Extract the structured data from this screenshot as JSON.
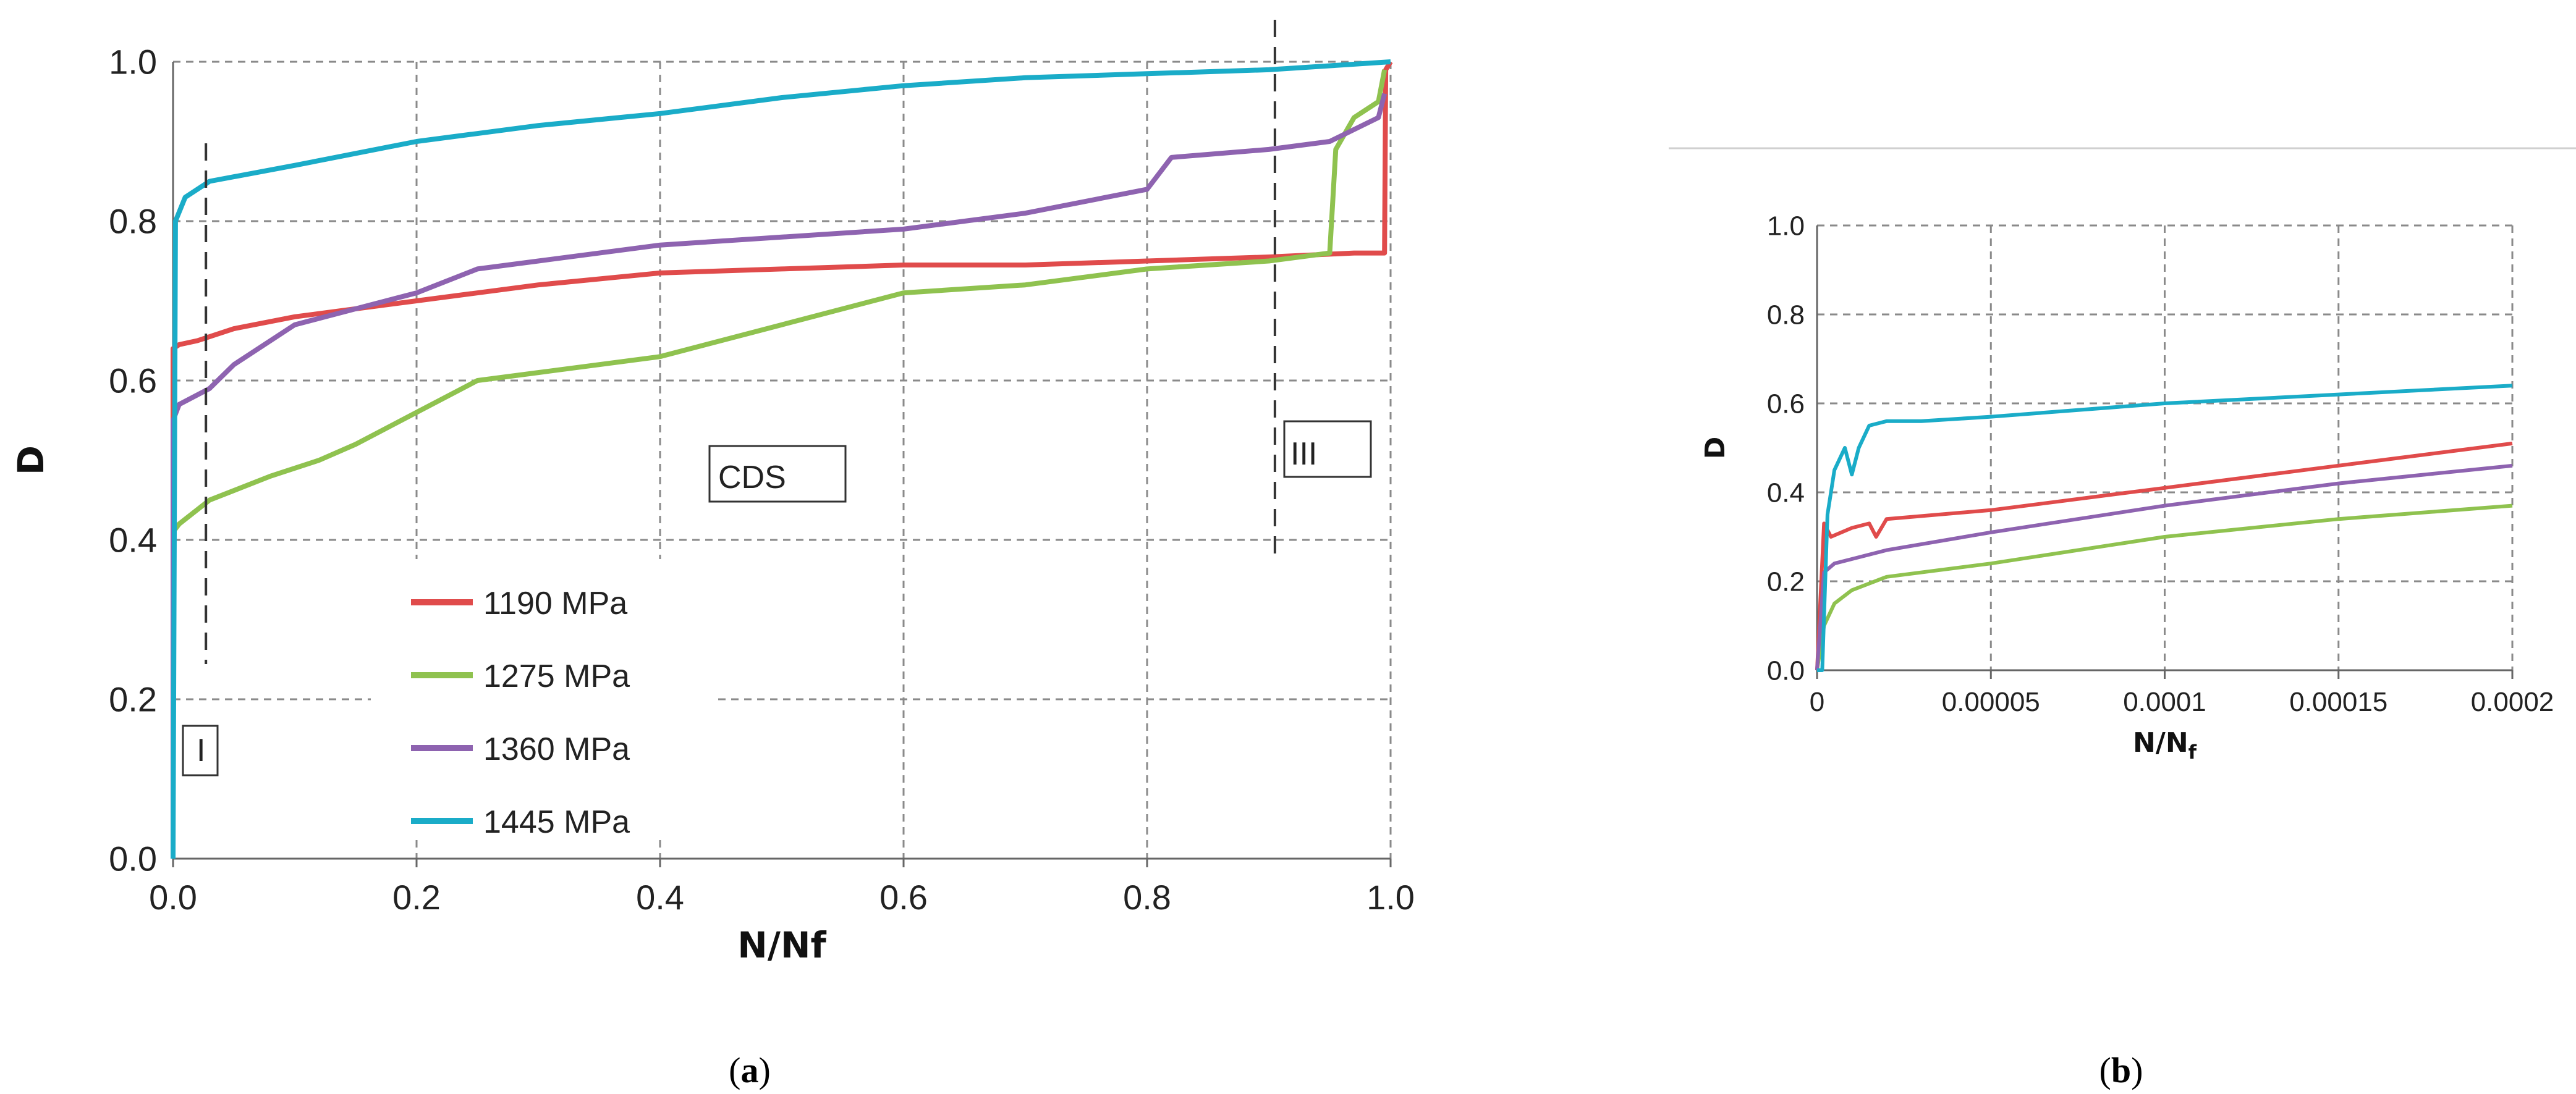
{
  "chart_data": [
    {
      "panel": "(a)",
      "type": "line",
      "xlabel": "N/Nf",
      "ylabel": "D",
      "xlim": [
        0,
        1.0
      ],
      "ylim": [
        0,
        1.0
      ],
      "xticks": [
        "0.0",
        "0.2",
        "0.4",
        "0.6",
        "0.8",
        "1.0"
      ],
      "yticks": [
        "0.0",
        "0.2",
        "0.4",
        "0.6",
        "0.8",
        "1.0"
      ],
      "grid": "dashed",
      "legend_position": "lower-left",
      "annotations": [
        "I",
        "CDS",
        "III"
      ],
      "stage_boundaries_x": [
        0.027,
        0.905
      ],
      "series": [
        {
          "name": "1190 MPa",
          "color": "#e04b4b",
          "x": [
            0,
            0.0,
            0.005,
            0.02,
            0.05,
            0.1,
            0.15,
            0.2,
            0.3,
            0.4,
            0.5,
            0.6,
            0.7,
            0.8,
            0.9,
            0.97,
            0.995,
            0.996,
            1.0
          ],
          "y": [
            0,
            0.64,
            0.645,
            0.65,
            0.665,
            0.68,
            0.69,
            0.7,
            0.72,
            0.735,
            0.74,
            0.745,
            0.745,
            0.75,
            0.755,
            0.76,
            0.76,
            0.99,
            1.0
          ]
        },
        {
          "name": "1275 MPa",
          "color": "#8fc24f",
          "x": [
            0,
            0.0,
            0.005,
            0.03,
            0.08,
            0.12,
            0.15,
            0.2,
            0.25,
            0.3,
            0.4,
            0.5,
            0.6,
            0.7,
            0.8,
            0.9,
            0.95,
            0.955,
            0.97,
            0.99,
            0.995
          ],
          "y": [
            0,
            0.41,
            0.42,
            0.45,
            0.48,
            0.5,
            0.52,
            0.56,
            0.6,
            0.61,
            0.63,
            0.67,
            0.71,
            0.72,
            0.74,
            0.75,
            0.76,
            0.89,
            0.93,
            0.95,
            0.99
          ]
        },
        {
          "name": "1360 MPa",
          "color": "#8e63b0",
          "x": [
            0,
            0.0,
            0.005,
            0.03,
            0.05,
            0.1,
            0.15,
            0.2,
            0.25,
            0.3,
            0.4,
            0.5,
            0.6,
            0.7,
            0.8,
            0.82,
            0.9,
            0.95,
            0.99,
            0.995
          ],
          "y": [
            0,
            0.55,
            0.57,
            0.59,
            0.62,
            0.67,
            0.69,
            0.71,
            0.74,
            0.75,
            0.77,
            0.78,
            0.79,
            0.81,
            0.84,
            0.88,
            0.89,
            0.9,
            0.93,
            0.96
          ]
        },
        {
          "name": "1445 MPa",
          "color": "#1aacc8",
          "x": [
            0,
            0.002,
            0.01,
            0.03,
            0.1,
            0.2,
            0.3,
            0.4,
            0.5,
            0.6,
            0.7,
            0.8,
            0.9,
            0.95,
            1.0
          ],
          "y": [
            0,
            0.8,
            0.83,
            0.85,
            0.87,
            0.9,
            0.92,
            0.935,
            0.955,
            0.97,
            0.98,
            0.985,
            0.99,
            0.995,
            1.0
          ]
        }
      ]
    },
    {
      "panel": "(b)",
      "type": "line",
      "xlabel": "N/N",
      "xlabel_subscript": "f",
      "ylabel": "D",
      "xlim": [
        0,
        0.0002
      ],
      "ylim": [
        0,
        1.0
      ],
      "xticks": [
        "0",
        "0.00005",
        "0.0001",
        "0.00015",
        "0.0002"
      ],
      "yticks": [
        "0.0",
        "0.2",
        "0.4",
        "0.6",
        "0.8",
        "1.0"
      ],
      "grid": "dashed",
      "series": [
        {
          "name": "",
          "color": "#e04b4b",
          "x": [
            0,
            2e-06,
            4e-06,
            1e-05,
            1.5e-05,
            1.7e-05,
            2e-05,
            5e-05,
            0.0001,
            0.00015,
            0.0002
          ],
          "y": [
            0,
            0.33,
            0.3,
            0.32,
            0.33,
            0.3,
            0.34,
            0.36,
            0.41,
            0.46,
            0.51
          ]
        },
        {
          "name": "",
          "color": "#8fc24f",
          "x": [
            0,
            2e-06,
            5e-06,
            1e-05,
            2e-05,
            5e-05,
            0.0001,
            0.00015,
            0.0002
          ],
          "y": [
            0,
            0.1,
            0.15,
            0.18,
            0.21,
            0.24,
            0.3,
            0.34,
            0.37
          ]
        },
        {
          "name": "",
          "color": "#8e63b0",
          "x": [
            0,
            2e-06,
            5e-06,
            1e-05,
            2e-05,
            5e-05,
            0.0001,
            0.00015,
            0.0002
          ],
          "y": [
            0,
            0.22,
            0.24,
            0.25,
            0.27,
            0.31,
            0.37,
            0.42,
            0.46
          ]
        },
        {
          "name": "",
          "color": "#1aacc8",
          "x": [
            0,
            1.5e-06,
            3e-06,
            5e-06,
            8e-06,
            1e-05,
            1.2e-05,
            1.5e-05,
            2e-05,
            3e-05,
            5e-05,
            0.0001,
            0.00015,
            0.0002
          ],
          "y": [
            0,
            0.0,
            0.35,
            0.45,
            0.5,
            0.44,
            0.5,
            0.55,
            0.56,
            0.56,
            0.57,
            0.6,
            0.62,
            0.64
          ]
        }
      ]
    }
  ]
}
